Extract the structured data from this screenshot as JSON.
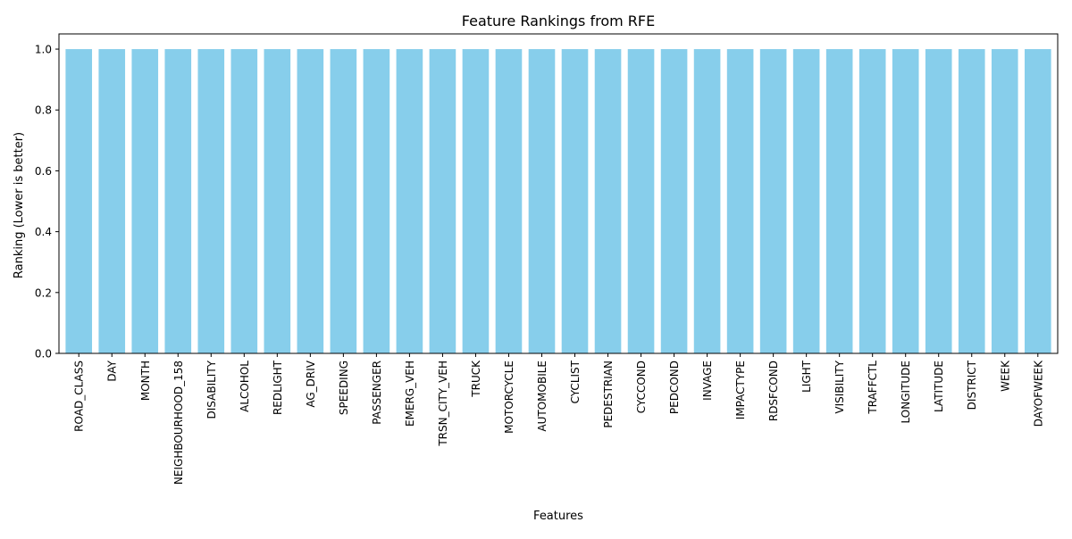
{
  "chart_data": {
    "type": "bar",
    "title": "Feature Rankings from RFE",
    "xlabel": "Features",
    "ylabel": "Ranking (Lower is better)",
    "ylim": [
      0,
      1.05
    ],
    "yticks": [
      0.0,
      0.2,
      0.4,
      0.6,
      0.8,
      1.0
    ],
    "ytick_labels": [
      "0.0",
      "0.2",
      "0.4",
      "0.6",
      "0.8",
      "1.0"
    ],
    "grid": false,
    "bar_color": "#87ceeb",
    "categories": [
      "ROAD_CLASS",
      "DAY",
      "MONTH",
      "NEIGHBOURHOOD_158",
      "DISABILITY",
      "ALCOHOL",
      "REDLIGHT",
      "AG_DRIV",
      "SPEEDING",
      "PASSENGER",
      "EMERG_VEH",
      "TRSN_CITY_VEH",
      "TRUCK",
      "MOTORCYCLE",
      "AUTOMOBILE",
      "CYCLIST",
      "PEDESTRIAN",
      "CYCCOND",
      "PEDCOND",
      "INVAGE",
      "IMPACTYPE",
      "RDSFCOND",
      "LIGHT",
      "VISIBILITY",
      "TRAFFCTL",
      "LONGITUDE",
      "LATITUDE",
      "DISTRICT",
      "WEEK",
      "DAYOFWEEK"
    ],
    "values": [
      1,
      1,
      1,
      1,
      1,
      1,
      1,
      1,
      1,
      1,
      1,
      1,
      1,
      1,
      1,
      1,
      1,
      1,
      1,
      1,
      1,
      1,
      1,
      1,
      1,
      1,
      1,
      1,
      1,
      1
    ]
  }
}
